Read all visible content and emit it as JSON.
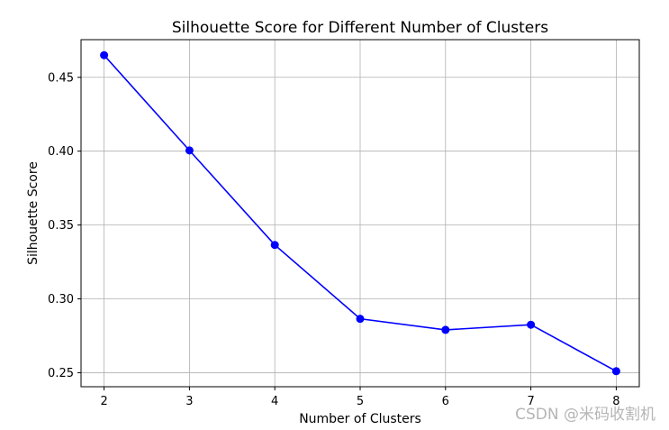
{
  "chart_data": {
    "type": "line",
    "title": "Silhouette Score for Different Number of Clusters",
    "xlabel": "Number of Clusters",
    "ylabel": "Silhouette Score",
    "x": [
      2,
      3,
      4,
      5,
      6,
      7,
      8
    ],
    "series": [
      {
        "values": [
          0.465,
          0.4005,
          0.3365,
          0.2865,
          0.279,
          0.2825,
          0.251
        ],
        "color": "#0000ff",
        "marker": "circle"
      }
    ],
    "xlim": [
      1.73,
      8.27
    ],
    "ylim": [
      0.2405,
      0.4755
    ],
    "xticks": [
      2,
      3,
      4,
      5,
      6,
      7,
      8
    ],
    "yticks": [
      0.25,
      0.3,
      0.35,
      0.4,
      0.45
    ],
    "ytick_labels": [
      "0.25",
      "0.30",
      "0.35",
      "0.40",
      "0.45"
    ],
    "grid": true
  },
  "watermark": "CSDN @米码收割机"
}
